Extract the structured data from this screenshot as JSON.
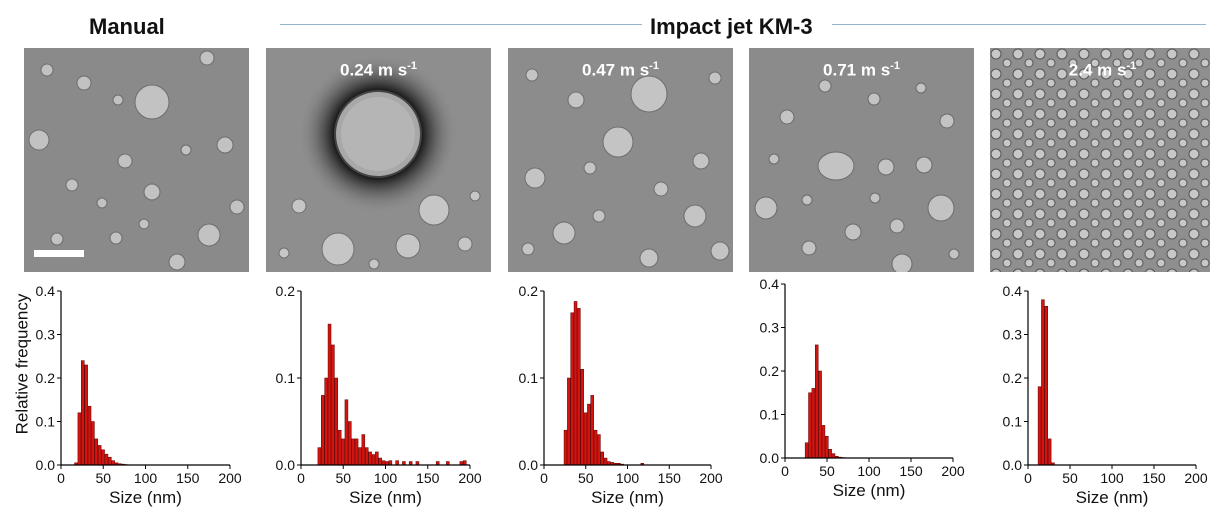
{
  "header": {
    "manual_label": "Manual",
    "impact_label": "Impact jet KM-3"
  },
  "panels": [
    {
      "speed_value": "",
      "speed_unit": ""
    },
    {
      "speed_value": "0.24 m s",
      "speed_unit": "-1"
    },
    {
      "speed_value": "0.47 m s",
      "speed_unit": "-1"
    },
    {
      "speed_value": "0.71 m s",
      "speed_unit": "-1"
    },
    {
      "speed_value": "2.4 m s",
      "speed_unit": "-1"
    }
  ],
  "ylabel": "Relative frequency",
  "colors": {
    "bar_fill": "#d4140f",
    "bar_stroke": "#5a0000",
    "header_line": "#8fb8d0"
  },
  "chart_data": [
    {
      "type": "bar",
      "xlabel": "Size (nm)",
      "xlim": [
        0,
        200
      ],
      "ylim": [
        0,
        0.4
      ],
      "xticks": [
        0,
        50,
        100,
        150,
        200
      ],
      "yticks": [
        0.0,
        0.1,
        0.2,
        0.3,
        0.4
      ],
      "bin_width": 4,
      "x": [
        16,
        20,
        24,
        28,
        32,
        36,
        40,
        44,
        48,
        52,
        56,
        60,
        64,
        68,
        72,
        76
      ],
      "values": [
        0.005,
        0.12,
        0.24,
        0.23,
        0.135,
        0.1,
        0.06,
        0.045,
        0.035,
        0.025,
        0.018,
        0.01,
        0.005,
        0.003,
        0.002,
        0.001
      ]
    },
    {
      "type": "bar",
      "xlabel": "Size (nm)",
      "xlim": [
        0,
        200
      ],
      "ylim": [
        0,
        0.2
      ],
      "xticks": [
        0,
        50,
        100,
        150,
        200
      ],
      "yticks": [
        0.0,
        0.1,
        0.2
      ],
      "bin_width": 4,
      "x": [
        20,
        24,
        28,
        32,
        36,
        40,
        44,
        48,
        52,
        56,
        60,
        64,
        68,
        72,
        76,
        80,
        84,
        88,
        92,
        96,
        100,
        104,
        112,
        120,
        128,
        136,
        160,
        172,
        188,
        192
      ],
      "values": [
        0.02,
        0.08,
        0.1,
        0.162,
        0.138,
        0.1,
        0.04,
        0.03,
        0.075,
        0.05,
        0.03,
        0.03,
        0.02,
        0.035,
        0.02,
        0.015,
        0.012,
        0.015,
        0.008,
        0.005,
        0.004,
        0.005,
        0.005,
        0.004,
        0.004,
        0.004,
        0.004,
        0.004,
        0.004,
        0.005
      ]
    },
    {
      "type": "bar",
      "xlabel": "Size (nm)",
      "xlim": [
        0,
        200
      ],
      "ylim": [
        0,
        0.2
      ],
      "xticks": [
        0,
        50,
        100,
        150,
        200
      ],
      "yticks": [
        0.0,
        0.1,
        0.2
      ],
      "bin_width": 4,
      "x": [
        24,
        28,
        32,
        36,
        40,
        44,
        48,
        52,
        56,
        60,
        64,
        68,
        72,
        76,
        80,
        84,
        88,
        92,
        116
      ],
      "values": [
        0.04,
        0.1,
        0.175,
        0.188,
        0.18,
        0.11,
        0.06,
        0.07,
        0.08,
        0.04,
        0.035,
        0.015,
        0.008,
        0.004,
        0.003,
        0.002,
        0.002,
        0.001,
        0.002
      ]
    },
    {
      "type": "bar",
      "xlabel": "Size (nm)",
      "xlim": [
        0,
        200
      ],
      "ylim": [
        0,
        0.4
      ],
      "xticks": [
        0,
        50,
        100,
        150,
        200
      ],
      "yticks": [
        0.0,
        0.1,
        0.2,
        0.3,
        0.4
      ],
      "bin_width": 4,
      "x": [
        24,
        28,
        32,
        36,
        40,
        44,
        48,
        52,
        56,
        60,
        64,
        68
      ],
      "values": [
        0.035,
        0.15,
        0.16,
        0.26,
        0.2,
        0.075,
        0.05,
        0.02,
        0.01,
        0.004,
        0.002,
        0.001
      ]
    },
    {
      "type": "bar",
      "xlabel": "Size (nm)",
      "xlim": [
        0,
        200
      ],
      "ylim": [
        0,
        0.4
      ],
      "xticks": [
        0,
        50,
        100,
        150,
        200
      ],
      "yticks": [
        0.0,
        0.1,
        0.2,
        0.3,
        0.4
      ],
      "bin_width": 4,
      "x": [
        12,
        16,
        20,
        24,
        28
      ],
      "values": [
        0.18,
        0.38,
        0.365,
        0.06,
        0.005
      ]
    }
  ]
}
